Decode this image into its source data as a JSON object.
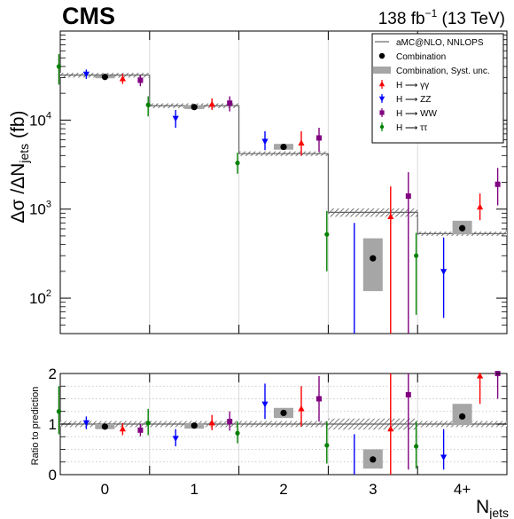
{
  "header": {
    "experiment": "CMS",
    "lumi_text": "138 fb",
    "lumi_exp": "−1",
    "energy_text": " (13 TeV)"
  },
  "axes": {
    "ylabel_main_part1": "Δσ /ΔN",
    "ylabel_main_sub": "jets",
    "ylabel_main_part2": " (fb)",
    "ylabel_ratio": "Ratio to prediction",
    "xlabel_main": "N",
    "xlabel_sub": "jets"
  },
  "colors": {
    "combination": "#000000",
    "gamma": "#ff0000",
    "zz": "#0000ff",
    "ww": "#800080",
    "tautau": "#008000",
    "syst_band": "#a6a6a6",
    "prediction": "#666666"
  },
  "chart_data": [
    {
      "type": "scatter",
      "panel": "main",
      "yscale": "log",
      "ylim": [
        40,
        100000
      ],
      "categories": [
        "0",
        "1",
        "2",
        "3",
        "4+"
      ],
      "y_ticks": [
        {
          "value": 100,
          "label": "10",
          "exp": "2"
        },
        {
          "value": 1000,
          "label": "10",
          "exp": "3"
        },
        {
          "value": 10000,
          "label": "10",
          "exp": "4"
        }
      ],
      "prediction": {
        "name": "aMC@NLO, NNLOPS",
        "values": [
          32000,
          14500,
          4200,
          920,
          530
        ],
        "unc_low": [
          30000,
          13600,
          3950,
          820,
          500
        ],
        "unc_high": [
          34000,
          15400,
          4450,
          1020,
          560
        ]
      },
      "series": [
        {
          "name": "Combination",
          "key": "comb",
          "marker": "circle",
          "values": [
            30500,
            14000,
            5000,
            280,
            610
          ],
          "err_low": [
            28500,
            12800,
            4400,
            40,
            430
          ],
          "err_high": [
            32500,
            15300,
            5700,
            980,
            810
          ],
          "syst_low": [
            29500,
            13300,
            4650,
            120,
            520
          ],
          "syst_high": [
            31500,
            14700,
            5400,
            470,
            740
          ]
        },
        {
          "name": "H ⟶ γγ",
          "key": "gamma",
          "marker": "triangle-up",
          "values": [
            29000,
            15000,
            5500,
            820,
            1050
          ],
          "err_low": [
            25500,
            13000,
            4000,
            40,
            750
          ],
          "err_high": [
            33000,
            17500,
            7500,
            1800,
            1500
          ]
        },
        {
          "name": "H ⟶ ZZ",
          "key": "zz",
          "marker": "triangle-down",
          "values": [
            33000,
            10500,
            5800,
            40,
            200
          ],
          "err_low": [
            29000,
            8200,
            4600,
            40,
            60
          ],
          "err_high": [
            37000,
            13000,
            7500,
            700,
            480
          ]
        },
        {
          "name": "H ⟶ WW",
          "key": "ww",
          "marker": "square",
          "values": [
            28000,
            15500,
            6300,
            1400,
            1900
          ],
          "err_low": [
            24000,
            12500,
            4400,
            40,
            1100
          ],
          "err_high": [
            32000,
            18500,
            8200,
            2600,
            2900
          ]
        },
        {
          "name": "H ⟶ ττ",
          "key": "tautau",
          "marker": "circle",
          "values": [
            40000,
            14800,
            3300,
            520,
            300
          ],
          "err_low": [
            25000,
            11000,
            2500,
            200,
            65
          ],
          "err_high": [
            55000,
            18500,
            4300,
            950,
            540
          ]
        }
      ]
    },
    {
      "type": "scatter",
      "panel": "ratio",
      "ylim": [
        0,
        2
      ],
      "categories": [
        "0",
        "1",
        "2",
        "3",
        "4+"
      ],
      "y_ticks": [
        {
          "value": 0,
          "label": "0"
        },
        {
          "value": 1,
          "label": "1"
        },
        {
          "value": 2,
          "label": "2"
        }
      ],
      "prediction": {
        "values": [
          1,
          1,
          1,
          1,
          1
        ],
        "unc_low": [
          0.94,
          0.94,
          0.94,
          0.89,
          0.94
        ],
        "unc_high": [
          1.06,
          1.06,
          1.06,
          1.11,
          1.06
        ]
      },
      "series": [
        {
          "name": "Combination",
          "key": "comb",
          "values": [
            0.95,
            0.97,
            1.22,
            0.3,
            1.15
          ],
          "err_low": [
            0.88,
            0.88,
            1.05,
            0.0,
            0.8
          ],
          "err_high": [
            1.02,
            1.07,
            1.4,
            0.65,
            1.55
          ],
          "syst_low": [
            0.9,
            0.91,
            1.12,
            0.12,
            0.98
          ],
          "syst_high": [
            1.0,
            1.02,
            1.32,
            0.5,
            1.4
          ]
        },
        {
          "name": "H ⟶ γγ",
          "key": "gamma",
          "values": [
            0.9,
            1.02,
            1.3,
            0.9,
            1.95
          ],
          "err_low": [
            0.78,
            0.88,
            0.95,
            0.0,
            1.4
          ],
          "err_high": [
            1.02,
            1.18,
            1.75,
            2.0,
            2.0
          ]
        },
        {
          "name": "H ⟶ ZZ",
          "key": "zz",
          "values": [
            1.03,
            0.72,
            1.4,
            0.0,
            0.35
          ],
          "err_low": [
            0.9,
            0.56,
            1.1,
            0.0,
            0.1
          ],
          "err_high": [
            1.15,
            0.9,
            1.8,
            0.8,
            0.9
          ]
        },
        {
          "name": "H ⟶ WW",
          "key": "ww",
          "values": [
            0.88,
            1.05,
            1.5,
            1.58,
            2.0
          ],
          "err_low": [
            0.76,
            0.87,
            1.05,
            0.1,
            1.5
          ],
          "err_high": [
            1.0,
            1.25,
            1.95,
            2.0,
            2.0
          ]
        },
        {
          "name": "H ⟶ ττ",
          "key": "tautau",
          "values": [
            1.25,
            1.02,
            0.82,
            0.58,
            0.56
          ],
          "err_low": [
            0.8,
            0.78,
            0.62,
            0.22,
            0.12
          ],
          "err_high": [
            1.75,
            1.3,
            1.05,
            1.05,
            1.05
          ]
        }
      ]
    }
  ],
  "legend": {
    "placement": "top-right",
    "entries": [
      {
        "label": "aMC@NLO, NNLOPS",
        "symbol": "line",
        "key": "prediction"
      },
      {
        "label": "Combination",
        "symbol": "circle",
        "key": "comb"
      },
      {
        "label": "Combination, Syst. unc.",
        "symbol": "band",
        "key": "syst"
      },
      {
        "label": "H ⟶ γγ",
        "symbol": "triangle-up",
        "key": "gamma"
      },
      {
        "label": "H ⟶ ZZ",
        "symbol": "triangle-down",
        "key": "zz"
      },
      {
        "label": "H ⟶ WW",
        "symbol": "square",
        "key": "ww"
      },
      {
        "label": "H ⟶ ττ",
        "symbol": "circle",
        "key": "tautau"
      }
    ]
  }
}
